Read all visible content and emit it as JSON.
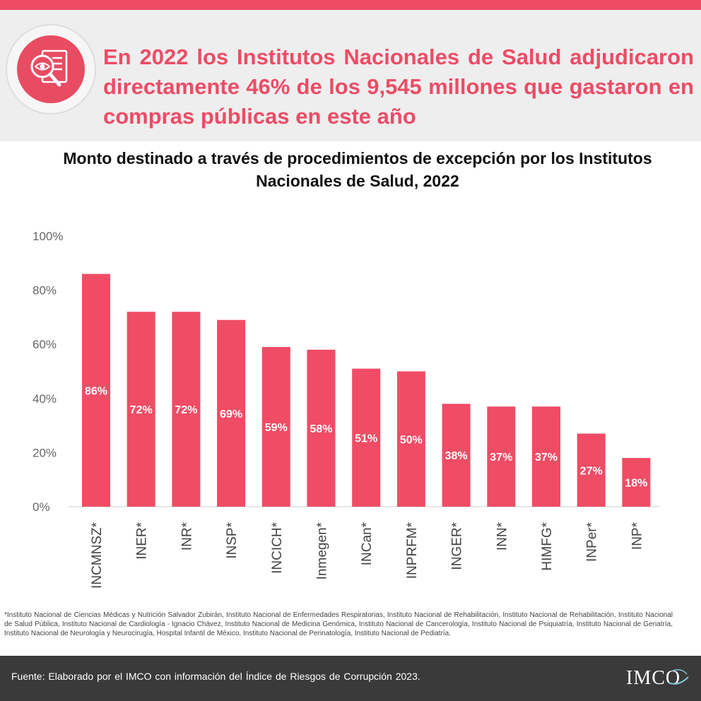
{
  "header": {
    "headline": "En 2022 los Institutos Nacionales de Salud adjudicaron directamente 46% de los 9,545 millones que gastaron en compras públicas en este año",
    "icon": "document-eye-magnifier-icon"
  },
  "colors": {
    "accent": "#ef4a64",
    "bar": "#f04c65",
    "header_bg": "#eeeeee",
    "footer_bg": "#3a3a3a"
  },
  "chart_data": {
    "type": "bar",
    "title": "Monto destinado a través de procedimientos de excepción por los Institutos Nacionales de Salud, 2022",
    "categories": [
      "INCMNSZ*",
      "INER*",
      "INR*",
      "INSP*",
      "INCICH*",
      "Inmegen*",
      "INCan*",
      "INPRFM*",
      "INGER*",
      "INN*",
      "HIMFG*",
      "INPer*",
      "INP*"
    ],
    "values": [
      86,
      72,
      72,
      69,
      59,
      58,
      51,
      50,
      38,
      37,
      37,
      27,
      18
    ],
    "value_labels": [
      "86%",
      "72%",
      "72%",
      "69%",
      "59%",
      "58%",
      "51%",
      "50%",
      "38%",
      "37%",
      "37%",
      "27%",
      "18%"
    ],
    "y_ticks": [
      0,
      20,
      40,
      60,
      80,
      100
    ],
    "y_tick_labels": [
      "0%",
      "20%",
      "40%",
      "60%",
      "80%",
      "100%"
    ],
    "ylim": [
      0,
      100
    ],
    "xlabel": "",
    "ylabel": "",
    "grid": false
  },
  "footnote": "*Instituto Nacional de Ciencias Médicas y Nutrición Salvador Zubirán, Instituto Nacional de Enfermedades Respiratorias, Instituto Nacional de Rehabilitación, Instituto Nacional de Rehabilitación, Instituto Nacional de Salud Pública, Instituto Nacional de Cardiología - Ignacio Chávez, Instituto Nacional de Medicina Genómica, Instituto Nacional de Cancerología, Instituto Nacional de Psiquiatría, Instituto Nacional de Geriatría, Instituto Nacional de Neurología y Neurocirugía, Hospital Infantil de México, Instituto Nacional de Perinatología, Instituto Nacional de Pediatría.",
  "footer": {
    "source": "Fuente: Elaborado por el IMCO con información del Índice de Riesgos de Corrupción 2023.",
    "logo": "IMCO"
  }
}
